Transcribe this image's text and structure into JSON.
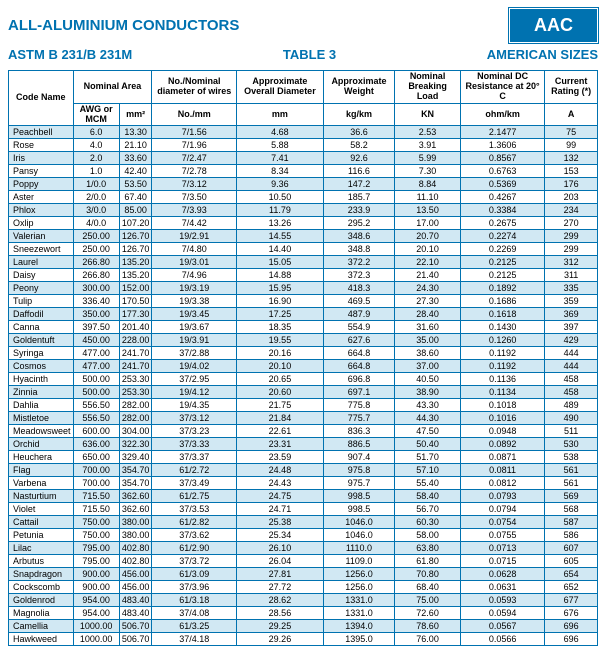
{
  "header": {
    "title": "ALL-ALUMINIUM CONDUCTORS",
    "badge": "AAC",
    "spec": "ASTM B 231/B 231M",
    "table_label": "TABLE 3",
    "sizes_label": "AMERICAN SIZES"
  },
  "columns": {
    "code_name": "Code Name",
    "nominal_area": "Nominal Area",
    "nom_diam_wires": "No./Nominal diameter of wires",
    "approx_overall": "Approximate Overall Diameter",
    "approx_weight": "Approximate Weight",
    "breaking_load": "Nominal Breaking Load",
    "dc_resistance": "Nominal DC Resistance at 20° C",
    "current_rating": "Current Rating (*)",
    "awg": "AWG or MCM",
    "mm2": "mm²",
    "nomm": "No./mm",
    "mm": "mm",
    "kgkm": "kg/km",
    "kn": "KN",
    "ohmkm": "ohm/km",
    "amp": "A"
  },
  "rows": [
    {
      "n": "Peachbell",
      "c": [
        "6.0",
        "13.30",
        "7/1.56",
        "4.68",
        "36.6",
        "2.53",
        "2.1477",
        "75"
      ]
    },
    {
      "n": "Rose",
      "c": [
        "4.0",
        "21.10",
        "7/1.96",
        "5.88",
        "58.2",
        "3.91",
        "1.3606",
        "99"
      ]
    },
    {
      "n": "Iris",
      "c": [
        "2.0",
        "33.60",
        "7/2.47",
        "7.41",
        "92.6",
        "5.99",
        "0.8567",
        "132"
      ]
    },
    {
      "n": "Pansy",
      "c": [
        "1.0",
        "42.40",
        "7/2.78",
        "8.34",
        "116.6",
        "7.30",
        "0.6763",
        "153"
      ]
    },
    {
      "n": "Poppy",
      "c": [
        "1/0.0",
        "53.50",
        "7/3.12",
        "9.36",
        "147.2",
        "8.84",
        "0.5369",
        "176"
      ]
    },
    {
      "n": "Aster",
      "c": [
        "2/0.0",
        "67.40",
        "7/3.50",
        "10.50",
        "185.7",
        "11.10",
        "0.4267",
        "203"
      ]
    },
    {
      "n": "Phlox",
      "c": [
        "3/0.0",
        "85.00",
        "7/3.93",
        "11.79",
        "233.9",
        "13.50",
        "0.3384",
        "234"
      ]
    },
    {
      "n": "Oxlip",
      "c": [
        "4/0.0",
        "107.20",
        "7/4.42",
        "13.26",
        "295.2",
        "17.00",
        "0.2675",
        "270"
      ]
    },
    {
      "n": "Valerian",
      "c": [
        "250.00",
        "126.70",
        "19/2.91",
        "14.55",
        "348.6",
        "20.70",
        "0.2274",
        "299"
      ]
    },
    {
      "n": "Sneezewort",
      "c": [
        "250.00",
        "126.70",
        "7/4.80",
        "14.40",
        "348.8",
        "20.10",
        "0.2269",
        "299"
      ]
    },
    {
      "n": "Laurel",
      "c": [
        "266.80",
        "135.20",
        "19/3.01",
        "15.05",
        "372.2",
        "22.10",
        "0.2125",
        "312"
      ]
    },
    {
      "n": "Daisy",
      "c": [
        "266.80",
        "135.20",
        "7/4.96",
        "14.88",
        "372.3",
        "21.40",
        "0.2125",
        "311"
      ]
    },
    {
      "n": "Peony",
      "c": [
        "300.00",
        "152.00",
        "19/3.19",
        "15.95",
        "418.3",
        "24.30",
        "0.1892",
        "335"
      ]
    },
    {
      "n": "Tulip",
      "c": [
        "336.40",
        "170.50",
        "19/3.38",
        "16.90",
        "469.5",
        "27.30",
        "0.1686",
        "359"
      ]
    },
    {
      "n": "Daffodil",
      "c": [
        "350.00",
        "177.30",
        "19/3.45",
        "17.25",
        "487.9",
        "28.40",
        "0.1618",
        "369"
      ]
    },
    {
      "n": "Canna",
      "c": [
        "397.50",
        "201.40",
        "19/3.67",
        "18.35",
        "554.9",
        "31.60",
        "0.1430",
        "397"
      ]
    },
    {
      "n": "Goldentuft",
      "c": [
        "450.00",
        "228.00",
        "19/3.91",
        "19.55",
        "627.6",
        "35.00",
        "0.1260",
        "429"
      ]
    },
    {
      "n": "Syringa",
      "c": [
        "477.00",
        "241.70",
        "37/2.88",
        "20.16",
        "664.8",
        "38.60",
        "0.1192",
        "444"
      ]
    },
    {
      "n": "Cosmos",
      "c": [
        "477.00",
        "241.70",
        "19/4.02",
        "20.10",
        "664.8",
        "37.00",
        "0.1192",
        "444"
      ]
    },
    {
      "n": "Hyacinth",
      "c": [
        "500.00",
        "253.30",
        "37/2.95",
        "20.65",
        "696.8",
        "40.50",
        "0.1136",
        "458"
      ]
    },
    {
      "n": "Zinnia",
      "c": [
        "500.00",
        "253.30",
        "19/4.12",
        "20.60",
        "697.1",
        "38.90",
        "0.1134",
        "458"
      ]
    },
    {
      "n": "Dahlia",
      "c": [
        "556.50",
        "282.00",
        "19/4.35",
        "21.75",
        "775.8",
        "43.30",
        "0.1018",
        "489"
      ]
    },
    {
      "n": "Mistletoe",
      "c": [
        "556.50",
        "282.00",
        "37/3.12",
        "21.84",
        "775.7",
        "44.30",
        "0.1016",
        "490"
      ]
    },
    {
      "n": "Meadowsweet",
      "c": [
        "600.00",
        "304.00",
        "37/3.23",
        "22.61",
        "836.3",
        "47.50",
        "0.0948",
        "511"
      ]
    },
    {
      "n": "Orchid",
      "c": [
        "636.00",
        "322.30",
        "37/3.33",
        "23.31",
        "886.5",
        "50.40",
        "0.0892",
        "530"
      ]
    },
    {
      "n": "Heuchera",
      "c": [
        "650.00",
        "329.40",
        "37/3.37",
        "23.59",
        "907.4",
        "51.70",
        "0.0871",
        "538"
      ]
    },
    {
      "n": "Flag",
      "c": [
        "700.00",
        "354.70",
        "61/2.72",
        "24.48",
        "975.8",
        "57.10",
        "0.0811",
        "561"
      ]
    },
    {
      "n": "Varbena",
      "c": [
        "700.00",
        "354.70",
        "37/3.49",
        "24.43",
        "975.7",
        "55.40",
        "0.0812",
        "561"
      ]
    },
    {
      "n": "Nasturtium",
      "c": [
        "715.50",
        "362.60",
        "61/2.75",
        "24.75",
        "998.5",
        "58.40",
        "0.0793",
        "569"
      ]
    },
    {
      "n": "Violet",
      "c": [
        "715.50",
        "362.60",
        "37/3.53",
        "24.71",
        "998.5",
        "56.70",
        "0.0794",
        "568"
      ]
    },
    {
      "n": "Cattail",
      "c": [
        "750.00",
        "380.00",
        "61/2.82",
        "25.38",
        "1046.0",
        "60.30",
        "0.0754",
        "587"
      ]
    },
    {
      "n": "Petunia",
      "c": [
        "750.00",
        "380.00",
        "37/3.62",
        "25.34",
        "1046.0",
        "58.00",
        "0.0755",
        "586"
      ]
    },
    {
      "n": "Lilac",
      "c": [
        "795.00",
        "402.80",
        "61/2.90",
        "26.10",
        "1110.0",
        "63.80",
        "0.0713",
        "607"
      ]
    },
    {
      "n": "Arbutus",
      "c": [
        "795.00",
        "402.80",
        "37/3.72",
        "26.04",
        "1109.0",
        "61.80",
        "0.0715",
        "605"
      ]
    },
    {
      "n": "Snapdragon",
      "c": [
        "900.00",
        "456.00",
        "61/3.09",
        "27.81",
        "1256.0",
        "70.80",
        "0.0628",
        "654"
      ]
    },
    {
      "n": "Cockscomb",
      "c": [
        "900.00",
        "456.00",
        "37/3.96",
        "27.72",
        "1256.0",
        "68.40",
        "0.0631",
        "652"
      ]
    },
    {
      "n": "Goldenrod",
      "c": [
        "954.00",
        "483.40",
        "61/3.18",
        "28.62",
        "1331.0",
        "75.00",
        "0.0593",
        "677"
      ]
    },
    {
      "n": "Magnolia",
      "c": [
        "954.00",
        "483.40",
        "37/4.08",
        "28.56",
        "1331.0",
        "72.60",
        "0.0594",
        "676"
      ]
    },
    {
      "n": "Camellia",
      "c": [
        "1000.00",
        "506.70",
        "61/3.25",
        "29.25",
        "1394.0",
        "78.60",
        "0.0567",
        "696"
      ]
    },
    {
      "n": "Hawkweed",
      "c": [
        "1000.00",
        "506.70",
        "37/4.18",
        "29.26",
        "1395.0",
        "76.00",
        "0.0566",
        "696"
      ]
    }
  ]
}
